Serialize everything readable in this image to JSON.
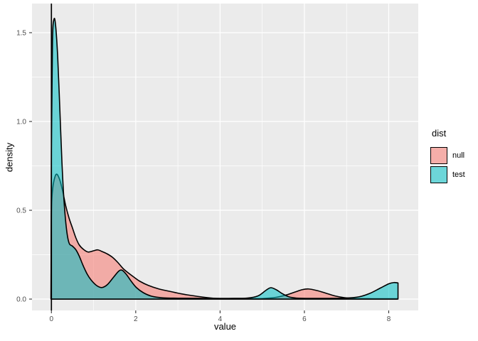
{
  "figure": {
    "background": "#FFFFFF"
  },
  "chart_data": {
    "type": "area",
    "subtype": "kernel-density",
    "title": "",
    "xlabel": "value",
    "ylabel": "density",
    "axes": {
      "x": {
        "min": -0.46,
        "max": 8.7,
        "major_ticks": [
          0,
          2,
          4,
          6,
          8
        ],
        "tick_labels": [
          "0",
          "2",
          "4",
          "6",
          "8"
        ],
        "minor_ticks": [
          1,
          3,
          5,
          7
        ]
      },
      "y": {
        "min": -0.064,
        "max": 1.664,
        "major_ticks": [
          0,
          0.5,
          1.0,
          1.5
        ],
        "tick_labels": [
          "0.0",
          "0.5",
          "1.0",
          "1.5"
        ],
        "minor_ticks": [
          0.25,
          0.75,
          1.25
        ]
      }
    },
    "panel": {
      "background": "#EBEBEB",
      "grid_color": "#FFFFFF",
      "tick_color": "#333333",
      "tick_label_color": "#4D4D4D"
    },
    "vline": {
      "x": 0,
      "color": "#000000"
    },
    "legend": {
      "title": "dist",
      "position": "right",
      "key_background": "#F2F2F2",
      "entries": [
        {
          "label": "null",
          "fill": "#F8766D"
        },
        {
          "label": "test",
          "fill": "#00BFC4"
        }
      ]
    },
    "series": [
      {
        "name": "null",
        "fill": "#F8766D",
        "alpha": 0.55,
        "stroke": "#000000",
        "points": [
          [
            -0.01,
            0.0
          ],
          [
            0.0,
            0.48
          ],
          [
            0.03,
            0.62
          ],
          [
            0.08,
            0.685
          ],
          [
            0.13,
            0.703
          ],
          [
            0.2,
            0.67
          ],
          [
            0.27,
            0.605
          ],
          [
            0.34,
            0.525
          ],
          [
            0.42,
            0.455
          ],
          [
            0.5,
            0.4
          ],
          [
            0.58,
            0.345
          ],
          [
            0.66,
            0.305
          ],
          [
            0.76,
            0.28
          ],
          [
            0.87,
            0.265
          ],
          [
            1.0,
            0.272
          ],
          [
            1.1,
            0.277
          ],
          [
            1.2,
            0.268
          ],
          [
            1.32,
            0.255
          ],
          [
            1.45,
            0.235
          ],
          [
            1.58,
            0.205
          ],
          [
            1.7,
            0.172
          ],
          [
            1.82,
            0.148
          ],
          [
            1.95,
            0.125
          ],
          [
            2.1,
            0.1
          ],
          [
            2.3,
            0.077
          ],
          [
            2.55,
            0.057
          ],
          [
            2.8,
            0.044
          ],
          [
            3.05,
            0.031
          ],
          [
            3.3,
            0.021
          ],
          [
            3.6,
            0.011
          ],
          [
            3.9,
            0.004
          ],
          [
            4.2,
            0.002
          ],
          [
            4.6,
            0.002
          ],
          [
            5.0,
            0.003
          ],
          [
            5.3,
            0.009
          ],
          [
            5.55,
            0.022
          ],
          [
            5.78,
            0.04
          ],
          [
            5.95,
            0.053
          ],
          [
            6.1,
            0.057
          ],
          [
            6.3,
            0.048
          ],
          [
            6.5,
            0.034
          ],
          [
            6.72,
            0.018
          ],
          [
            6.95,
            0.008
          ],
          [
            7.2,
            0.003
          ],
          [
            7.6,
            0.002
          ],
          [
            8.0,
            0.002
          ],
          [
            8.2,
            0.002
          ]
        ]
      },
      {
        "name": "test",
        "fill": "#00BFC4",
        "alpha": 0.55,
        "stroke": "#000000",
        "points": [
          [
            -0.01,
            0.0
          ],
          [
            0.0,
            0.85
          ],
          [
            0.025,
            1.45
          ],
          [
            0.06,
            1.575
          ],
          [
            0.1,
            1.54
          ],
          [
            0.15,
            1.36
          ],
          [
            0.2,
            1.07
          ],
          [
            0.25,
            0.77
          ],
          [
            0.3,
            0.55
          ],
          [
            0.36,
            0.39
          ],
          [
            0.42,
            0.315
          ],
          [
            0.5,
            0.298
          ],
          [
            0.58,
            0.278
          ],
          [
            0.66,
            0.242
          ],
          [
            0.75,
            0.19
          ],
          [
            0.85,
            0.14
          ],
          [
            0.95,
            0.105
          ],
          [
            1.08,
            0.075
          ],
          [
            1.2,
            0.065
          ],
          [
            1.33,
            0.082
          ],
          [
            1.48,
            0.125
          ],
          [
            1.6,
            0.158
          ],
          [
            1.68,
            0.162
          ],
          [
            1.78,
            0.138
          ],
          [
            1.9,
            0.098
          ],
          [
            2.02,
            0.064
          ],
          [
            2.18,
            0.036
          ],
          [
            2.38,
            0.016
          ],
          [
            2.65,
            0.007
          ],
          [
            3.0,
            0.005
          ],
          [
            3.6,
            0.004
          ],
          [
            4.2,
            0.004
          ],
          [
            4.65,
            0.006
          ],
          [
            4.9,
            0.018
          ],
          [
            5.08,
            0.048
          ],
          [
            5.2,
            0.064
          ],
          [
            5.33,
            0.053
          ],
          [
            5.48,
            0.03
          ],
          [
            5.63,
            0.013
          ],
          [
            5.8,
            0.006
          ],
          [
            6.1,
            0.004
          ],
          [
            6.6,
            0.004
          ],
          [
            7.0,
            0.006
          ],
          [
            7.3,
            0.013
          ],
          [
            7.55,
            0.032
          ],
          [
            7.8,
            0.062
          ],
          [
            8.0,
            0.086
          ],
          [
            8.12,
            0.093
          ],
          [
            8.22,
            0.091
          ]
        ]
      }
    ]
  }
}
